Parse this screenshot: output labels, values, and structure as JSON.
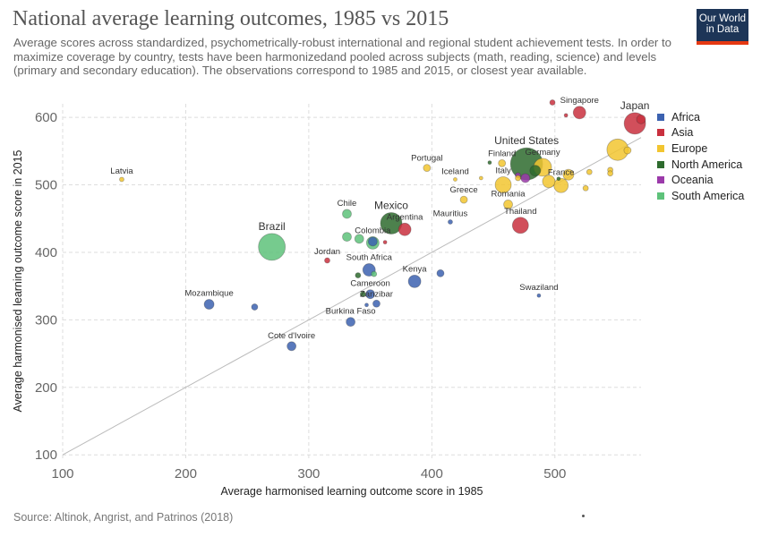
{
  "title": "National average learning outcomes, 1985 vs 2015",
  "subtitle": "Average scores across standardized, psychometrically-robust international and regional student achievement tests. In order to maximize coverage by country, tests have been harmonizedand pooled across subjects (math, reading, science) and levels (primary and secondary education). The observations correspond to 1985 and 2015, or closest year available.",
  "logo": {
    "line1": "Our World",
    "line2": "in Data"
  },
  "source": "Source: Altinok, Angrist, and Patrinos (2018)",
  "chart_data": {
    "type": "scatter",
    "xlabel": "Average harmonised learning outcome score in 1985",
    "ylabel": "Average harmonised learning outcome score in 2015",
    "xlim": [
      100,
      570
    ],
    "ylim": [
      95,
      620
    ],
    "xticks": [
      100,
      200,
      300,
      400,
      500
    ],
    "yticks": [
      100,
      200,
      300,
      400,
      500,
      600
    ],
    "grid": true,
    "legend_position": "right",
    "reference_line": "y = x",
    "groups": [
      {
        "name": "Africa",
        "color": "#3c62b0"
      },
      {
        "name": "Asia",
        "color": "#c9303e"
      },
      {
        "name": "Europe",
        "color": "#f2c530"
      },
      {
        "name": "North America",
        "color": "#2e6b2e"
      },
      {
        "name": "Oceania",
        "color": "#9b3aaa"
      },
      {
        "name": "South America",
        "color": "#5ec27a"
      }
    ],
    "points": [
      {
        "label": "Latvia",
        "x": 148,
        "y": 508,
        "r": 2.5,
        "group": "Europe"
      },
      {
        "label": "Mozambique",
        "x": 219,
        "y": 323,
        "r": 5.5,
        "group": "Africa"
      },
      {
        "label": "",
        "x": 256,
        "y": 319,
        "r": 3.5,
        "group": "Africa"
      },
      {
        "label": "Brazil",
        "x": 270,
        "y": 408,
        "r": 15,
        "group": "South America"
      },
      {
        "label": "Cote d'Ivoire",
        "x": 286,
        "y": 261,
        "r": 5,
        "group": "Africa"
      },
      {
        "label": "Jordan",
        "x": 315,
        "y": 388,
        "r": 3,
        "group": "Asia"
      },
      {
        "label": "Chile",
        "x": 331,
        "y": 457,
        "r": 5,
        "group": "South America"
      },
      {
        "label": "",
        "x": 331,
        "y": 423,
        "r": 5,
        "group": "South America"
      },
      {
        "label": "",
        "x": 341,
        "y": 420,
        "r": 5,
        "group": "South America"
      },
      {
        "label": "Colombia",
        "x": 352,
        "y": 414,
        "r": 7,
        "group": "South America"
      },
      {
        "label": "",
        "x": 352,
        "y": 416,
        "r": 5,
        "group": "Africa"
      },
      {
        "label": "Burkina Faso",
        "x": 334,
        "y": 297,
        "r": 5,
        "group": "Africa"
      },
      {
        "label": "",
        "x": 340,
        "y": 366,
        "r": 3,
        "group": "North America"
      },
      {
        "label": "",
        "x": 344,
        "y": 338,
        "r": 3,
        "group": "North America"
      },
      {
        "label": "South Africa",
        "x": 349,
        "y": 374,
        "r": 7,
        "group": "Africa"
      },
      {
        "label": "",
        "x": 353,
        "y": 368,
        "r": 3,
        "group": "South America"
      },
      {
        "label": "Cameroon",
        "x": 350,
        "y": 338,
        "r": 5,
        "group": "Africa"
      },
      {
        "label": "Zanzibar",
        "x": 355,
        "y": 324,
        "r": 4,
        "group": "Africa"
      },
      {
        "label": "",
        "x": 347,
        "y": 322,
        "r": 2,
        "group": "Africa"
      },
      {
        "label": "Mexico",
        "x": 367,
        "y": 443,
        "r": 12,
        "group": "North America"
      },
      {
        "label": "",
        "x": 362,
        "y": 415,
        "r": 2,
        "group": "Asia"
      },
      {
        "label": "Argentina",
        "x": 378,
        "y": 434,
        "r": 7,
        "group": "Asia"
      },
      {
        "label": "Kenya",
        "x": 386,
        "y": 357,
        "r": 7,
        "group": "Africa"
      },
      {
        "label": "",
        "x": 407,
        "y": 369,
        "r": 4,
        "group": "Africa"
      },
      {
        "label": "Portugal",
        "x": 396,
        "y": 525,
        "r": 4,
        "group": "Europe"
      },
      {
        "label": "Iceland",
        "x": 419,
        "y": 508,
        "r": 2,
        "group": "Europe"
      },
      {
        "label": "Mauritius",
        "x": 415,
        "y": 445,
        "r": 2.5,
        "group": "Africa"
      },
      {
        "label": "Greece",
        "x": 426,
        "y": 478,
        "r": 4,
        "group": "Europe"
      },
      {
        "label": "",
        "x": 440,
        "y": 510,
        "r": 2,
        "group": "Europe"
      },
      {
        "label": "",
        "x": 447,
        "y": 533,
        "r": 2,
        "group": "North America"
      },
      {
        "label": "Finland",
        "x": 457,
        "y": 532,
        "r": 4,
        "group": "Europe"
      },
      {
        "label": "Italy",
        "x": 458,
        "y": 500,
        "r": 9,
        "group": "Europe"
      },
      {
        "label": "Romania",
        "x": 462,
        "y": 471,
        "r": 5,
        "group": "Europe"
      },
      {
        "label": "Thailand",
        "x": 472,
        "y": 440,
        "r": 9,
        "group": "Asia"
      },
      {
        "label": "United States",
        "x": 477,
        "y": 531,
        "r": 18,
        "group": "North America"
      },
      {
        "label": "",
        "x": 484,
        "y": 521,
        "r": 6,
        "group": "North America"
      },
      {
        "label": "Germany",
        "x": 490,
        "y": 526,
        "r": 10,
        "group": "Europe"
      },
      {
        "label": "",
        "x": 470,
        "y": 514,
        "r": 3,
        "group": "Oceania"
      },
      {
        "label": "",
        "x": 476,
        "y": 510,
        "r": 5,
        "group": "Oceania"
      },
      {
        "label": "",
        "x": 470,
        "y": 510,
        "r": 3,
        "group": "Europe"
      },
      {
        "label": "",
        "x": 495,
        "y": 505,
        "r": 7,
        "group": "Europe"
      },
      {
        "label": "France",
        "x": 505,
        "y": 499,
        "r": 8,
        "group": "Europe"
      },
      {
        "label": "",
        "x": 511,
        "y": 515,
        "r": 6,
        "group": "Europe"
      },
      {
        "label": "",
        "x": 525,
        "y": 495,
        "r": 3,
        "group": "Europe"
      },
      {
        "label": "",
        "x": 528,
        "y": 519,
        "r": 3,
        "group": "Europe"
      },
      {
        "label": "",
        "x": 545,
        "y": 522,
        "r": 3,
        "group": "Europe"
      },
      {
        "label": "",
        "x": 545,
        "y": 517,
        "r": 3,
        "group": "Europe"
      },
      {
        "label": "",
        "x": 503,
        "y": 509,
        "r": 2,
        "group": "North America"
      },
      {
        "label": "Swaziland",
        "x": 487,
        "y": 336,
        "r": 2,
        "group": "Africa"
      },
      {
        "label": "",
        "x": 498,
        "y": 622,
        "r": 3,
        "group": "Asia"
      },
      {
        "label": "Singapore",
        "x": 520,
        "y": 607,
        "r": 7,
        "group": "Asia"
      },
      {
        "label": "",
        "x": 509,
        "y": 603,
        "r": 2,
        "group": "Asia"
      },
      {
        "label": "",
        "x": 551,
        "y": 552,
        "r": 12,
        "group": "Europe"
      },
      {
        "label": "",
        "x": 559,
        "y": 551,
        "r": 4,
        "group": "Europe"
      },
      {
        "label": "Japan",
        "x": 565,
        "y": 591,
        "r": 12,
        "group": "Asia"
      },
      {
        "label": "",
        "x": 570,
        "y": 597,
        "r": 5,
        "group": "Asia"
      }
    ]
  }
}
